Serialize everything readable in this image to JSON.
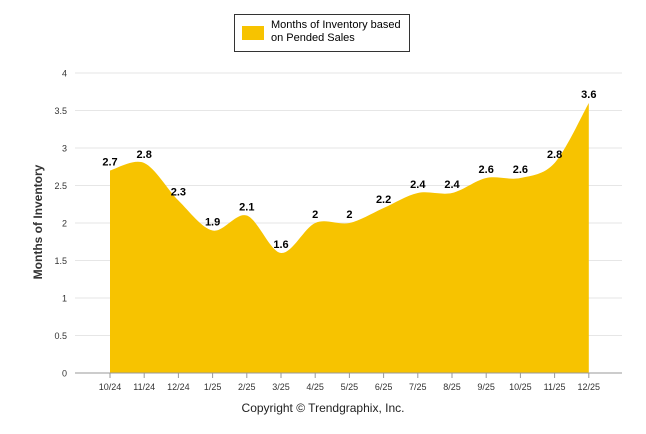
{
  "colors": {
    "fill": "#F7C300",
    "grid": "#e6e6e6",
    "axis": "#999999"
  },
  "chart_data": {
    "type": "area",
    "categories": [
      "10/24",
      "11/24",
      "12/24",
      "1/25",
      "2/25",
      "3/25",
      "4/25",
      "5/25",
      "6/25",
      "7/25",
      "8/25",
      "9/25",
      "10/25",
      "11/25",
      "12/25"
    ],
    "series": [
      {
        "name": "Months of Inventory based on Pended Sales",
        "values": [
          2.7,
          2.8,
          2.3,
          1.9,
          2.1,
          1.6,
          2,
          2,
          2.2,
          2.4,
          2.4,
          2.6,
          2.6,
          2.8,
          3.6
        ]
      }
    ],
    "data_labels": [
      "2.7",
      "2.8",
      "2.3",
      "1.9",
      "2.1",
      "1.6",
      "2",
      "2",
      "2.2",
      "2.4",
      "2.4",
      "2.6",
      "2.6",
      "2.8",
      "3.6"
    ],
    "ylabel": "Months of Inventory",
    "ylim": [
      0,
      4
    ],
    "yticks": [
      0,
      0.5,
      1,
      1.5,
      2,
      2.5,
      3,
      3.5,
      4
    ],
    "ytick_labels": [
      "0",
      "0.5",
      "1",
      "1.5",
      "2",
      "2.5",
      "3",
      "3.5",
      "4"
    ],
    "grid": true,
    "legend_position": "top-center"
  },
  "legend": {
    "label": "Months of Inventory based on Pended Sales"
  },
  "footer": {
    "copyright": "Copyright © Trendgraphix, Inc."
  }
}
